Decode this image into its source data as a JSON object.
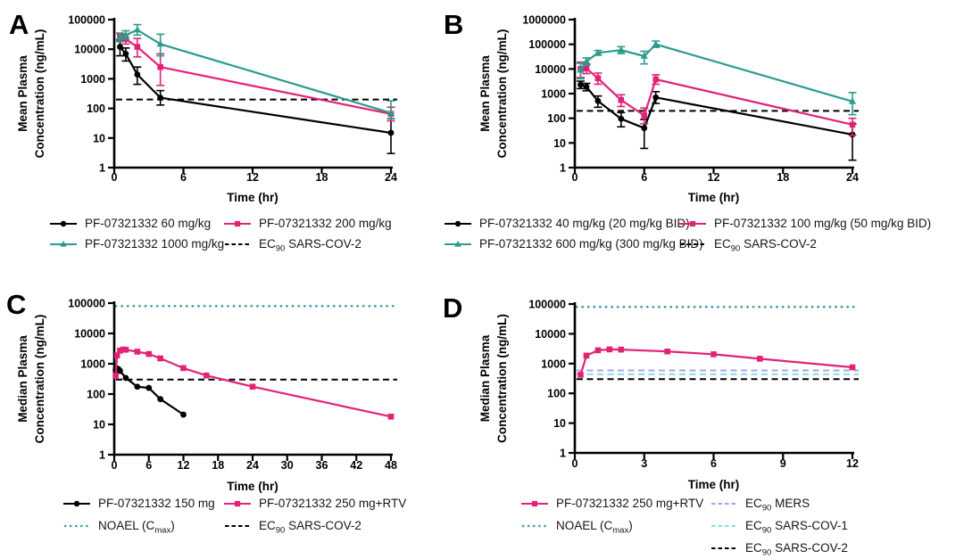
{
  "figure": {
    "background": "#ffffff"
  },
  "chart_data": [
    {
      "letter": "A",
      "type": "line",
      "x_axis": {
        "label": "Time (hr)",
        "range": [
          0,
          24
        ],
        "ticks": [
          0,
          6,
          12,
          18,
          24
        ]
      },
      "y_axis": {
        "label": "Mean Plasma Concentration (ng/mL)",
        "label_lines": [
          "Mean Plasma",
          "Concentration (ng/mL)"
        ],
        "scale": "log",
        "range": [
          1,
          100000
        ],
        "ticks": [
          1,
          10,
          100,
          1000,
          10000,
          100000
        ]
      },
      "ref_lines": [
        {
          "label": "EC~90~ SARS-COV-2",
          "value": 200,
          "style": "dashed",
          "color": "#000000"
        }
      ],
      "series": [
        {
          "name": "PF-07321332 60 mg/kg",
          "color": "#000000",
          "marker": "circle",
          "points": [
            {
              "x": 0.5,
              "y": 12000,
              "lo": 6000,
              "hi": 21000
            },
            {
              "x": 1,
              "y": 7000,
              "lo": 4000,
              "hi": 11000
            },
            {
              "x": 2,
              "y": 1400,
              "lo": 650,
              "hi": 2500
            },
            {
              "x": 4,
              "y": 230,
              "lo": 130,
              "hi": 400
            },
            {
              "x": 24,
              "y": 15,
              "lo": 3,
              "hi": 45
            }
          ]
        },
        {
          "name": "PF-07321332 200 mg/kg",
          "color": "#E22277",
          "marker": "square",
          "points": [
            {
              "x": 0.5,
              "y": 26000,
              "lo": 19000,
              "hi": 35000
            },
            {
              "x": 1,
              "y": 22000,
              "lo": 15000,
              "hi": 32000
            },
            {
              "x": 2,
              "y": 12000,
              "lo": 5500,
              "hi": 23000
            },
            {
              "x": 4,
              "y": 2500,
              "lo": 600,
              "hi": 7000
            },
            {
              "x": 24,
              "y": 65,
              "lo": 38,
              "hi": 110
            }
          ]
        },
        {
          "name": "PF-07321332 1000 mg/kg",
          "color": "#2A9C8E",
          "marker": "triangle",
          "points": [
            {
              "x": 0.5,
              "y": 25000,
              "lo": 18000,
              "hi": 34000
            },
            {
              "x": 1,
              "y": 30000,
              "lo": 22000,
              "hi": 42000
            },
            {
              "x": 2,
              "y": 45000,
              "lo": 30000,
              "hi": 68000
            },
            {
              "x": 4,
              "y": 15000,
              "lo": 6000,
              "hi": 32000
            },
            {
              "x": 24,
              "y": 70,
              "lo": 45,
              "hi": 180
            }
          ]
        }
      ],
      "legend": {
        "columns": [
          [
            {
              "swatch": "line-circle",
              "color": "#000000",
              "label": "PF-07321332 60 mg/kg"
            },
            {
              "swatch": "line-triangle",
              "color": "#2A9C8E",
              "label": "PF-07321332 1000 mg/kg"
            }
          ],
          [
            {
              "swatch": "line-square",
              "color": "#E22277",
              "label": "PF-07321332 200 mg/kg"
            },
            {
              "swatch": "dashed",
              "color": "#000000",
              "label": "EC~90~ SARS-COV-2"
            }
          ]
        ]
      }
    },
    {
      "letter": "B",
      "type": "line",
      "x_axis": {
        "label": "Time (hr)",
        "range": [
          0,
          24
        ],
        "ticks": [
          0,
          6,
          12,
          18,
          24
        ]
      },
      "y_axis": {
        "label": "Mean Plasma Concentration (ng/mL)",
        "label_lines": [
          "Mean Plasma",
          "Concentration (ng/mL)"
        ],
        "scale": "log",
        "range": [
          1,
          1000000
        ],
        "ticks": [
          1,
          10,
          100,
          1000,
          10000,
          100000,
          1000000
        ]
      },
      "ref_lines": [
        {
          "label": "EC~90~ SARS-COV-2",
          "value": 200,
          "style": "dashed",
          "color": "#000000"
        }
      ],
      "series": [
        {
          "name": "PF-07321332 40 mg/kg (20 mg/kg BID)",
          "color": "#000000",
          "marker": "circle",
          "points": [
            {
              "x": 0.5,
              "y": 2300,
              "lo": 1600,
              "hi": 3200
            },
            {
              "x": 1,
              "y": 1900,
              "lo": 1300,
              "hi": 2600
            },
            {
              "x": 2,
              "y": 500,
              "lo": 280,
              "hi": 800
            },
            {
              "x": 4,
              "y": 95,
              "lo": 45,
              "hi": 170
            },
            {
              "x": 6,
              "y": 40,
              "lo": 6,
              "hi": 90
            },
            {
              "x": 7,
              "y": 700,
              "lo": 400,
              "hi": 1200
            },
            {
              "x": 24,
              "y": 22,
              "lo": 2,
              "hi": 60
            }
          ]
        },
        {
          "name": "PF-07321332 100 mg/kg (50 mg/kg BID)",
          "color": "#E22277",
          "marker": "square",
          "points": [
            {
              "x": 0.5,
              "y": 10000,
              "lo": 4500,
              "hi": 19000
            },
            {
              "x": 1,
              "y": 10500,
              "lo": 6500,
              "hi": 16000
            },
            {
              "x": 2,
              "y": 4200,
              "lo": 2400,
              "hi": 6800
            },
            {
              "x": 4,
              "y": 550,
              "lo": 300,
              "hi": 900
            },
            {
              "x": 6,
              "y": 130,
              "lo": 60,
              "hi": 260
            },
            {
              "x": 7,
              "y": 3800,
              "lo": 2400,
              "hi": 5800
            },
            {
              "x": 24,
              "y": 55,
              "lo": 20,
              "hi": 100
            }
          ]
        },
        {
          "name": "PF-07321332 600 mg/kg (300 mg/kg BID)",
          "color": "#2A9C8E",
          "marker": "triangle",
          "points": [
            {
              "x": 0.5,
              "y": 9000,
              "lo": 4000,
              "hi": 17000
            },
            {
              "x": 1,
              "y": 20000,
              "lo": 14000,
              "hi": 28000
            },
            {
              "x": 2,
              "y": 45000,
              "lo": 36000,
              "hi": 56000
            },
            {
              "x": 4,
              "y": 58000,
              "lo": 42000,
              "hi": 80000
            },
            {
              "x": 6,
              "y": 33000,
              "lo": 16000,
              "hi": 52000
            },
            {
              "x": 7,
              "y": 100000,
              "lo": 75000,
              "hi": 135000
            },
            {
              "x": 24,
              "y": 480,
              "lo": 140,
              "hi": 1100
            }
          ]
        }
      ],
      "legend": {
        "columns": [
          [
            {
              "swatch": "line-circle",
              "color": "#000000",
              "label": "PF-07321332 40 mg/kg (20 mg/kg BID)"
            },
            {
              "swatch": "line-triangle",
              "color": "#2A9C8E",
              "label": "PF-07321332 600 mg/kg (300 mg/kg BID)"
            }
          ],
          [
            {
              "swatch": "line-square",
              "color": "#E22277",
              "label": "PF-07321332 100 mg/kg (50 mg/kg BID)"
            },
            {
              "swatch": "dashed",
              "color": "#000000",
              "label": "EC~90~ SARS-COV-2"
            }
          ]
        ]
      }
    },
    {
      "letter": "C",
      "type": "line",
      "x_axis": {
        "label": "Time (hr)",
        "range": [
          0,
          48
        ],
        "ticks": [
          0,
          6,
          12,
          18,
          24,
          30,
          36,
          42,
          48
        ]
      },
      "y_axis": {
        "label": "Median Plasma Concentration (ng/mL)",
        "label_lines": [
          "Median Plasma",
          "Concentration (ng/mL)"
        ],
        "scale": "log",
        "range": [
          1,
          100000
        ],
        "ticks": [
          1,
          10,
          100,
          1000,
          10000,
          100000
        ]
      },
      "ref_lines": [
        {
          "label": "NOAEL (C~max~)",
          "value": 80000,
          "style": "dotted",
          "color": "#3D9EA0"
        },
        {
          "label": "EC~90~ SARS-COV-2",
          "value": 300,
          "style": "dashed",
          "color": "#000000"
        }
      ],
      "series": [
        {
          "name": "PF-07321332 150 mg",
          "color": "#000000",
          "marker": "circle",
          "points": [
            {
              "x": 0.25,
              "y": 620
            },
            {
              "x": 0.5,
              "y": 700
            },
            {
              "x": 0.75,
              "y": 660
            },
            {
              "x": 1,
              "y": 580
            },
            {
              "x": 2,
              "y": 340
            },
            {
              "x": 4,
              "y": 175
            },
            {
              "x": 6,
              "y": 160
            },
            {
              "x": 8,
              "y": 68
            },
            {
              "x": 12,
              "y": 21
            }
          ]
        },
        {
          "name": "PF-07321332 250 mg+RTV",
          "color": "#E22277",
          "marker": "square",
          "points": [
            {
              "x": 0.25,
              "y": 400
            },
            {
              "x": 0.5,
              "y": 1900
            },
            {
              "x": 1,
              "y": 2700
            },
            {
              "x": 1.5,
              "y": 2950
            },
            {
              "x": 2,
              "y": 2900
            },
            {
              "x": 4,
              "y": 2500
            },
            {
              "x": 6,
              "y": 2100
            },
            {
              "x": 8,
              "y": 1500
            },
            {
              "x": 12,
              "y": 720
            },
            {
              "x": 16,
              "y": 410
            },
            {
              "x": 24,
              "y": 175
            },
            {
              "x": 48,
              "y": 18
            }
          ]
        }
      ],
      "legend": {
        "columns": [
          [
            {
              "swatch": "line-circle",
              "color": "#000000",
              "label": "PF-07321332 150 mg"
            },
            {
              "swatch": "dotted",
              "color": "#3D9EA0",
              "label": "NOAEL (C~max~)"
            }
          ],
          [
            {
              "swatch": "line-square",
              "color": "#E22277",
              "label": "PF-07321332 250 mg+RTV"
            },
            {
              "swatch": "dashed",
              "color": "#000000",
              "label": "EC~90~ SARS-COV-2"
            }
          ]
        ]
      }
    },
    {
      "letter": "D",
      "type": "line",
      "x_axis": {
        "label": "Time (hr)",
        "range": [
          0,
          12
        ],
        "ticks": [
          0,
          3,
          6,
          9,
          12
        ]
      },
      "y_axis": {
        "label": "Median Plasma Concentration (ng/mL)",
        "label_lines": [
          "Median Plasma",
          "Concentration (ng/mL)"
        ],
        "scale": "log",
        "range": [
          1,
          100000
        ],
        "ticks": [
          1,
          10,
          100,
          1000,
          10000,
          100000
        ]
      },
      "ref_lines": [
        {
          "label": "NOAEL (C~max~)",
          "value": 80000,
          "style": "dotted",
          "color": "#3D9EA0"
        },
        {
          "label": "EC~90~ MERS",
          "value": 590,
          "style": "dashed",
          "color": "#A3A3E8"
        },
        {
          "label": "EC~90~ SARS-COV-1",
          "value": 440,
          "style": "dashed",
          "color": "#8BDBDE"
        },
        {
          "label": "EC~90~ SARS-COV-2",
          "value": 300,
          "style": "dashed",
          "color": "#000000"
        }
      ],
      "series": [
        {
          "name": "PF-07321332 250 mg+RTV",
          "color": "#E22277",
          "marker": "square",
          "points": [
            {
              "x": 0.25,
              "y": 420
            },
            {
              "x": 0.5,
              "y": 1850
            },
            {
              "x": 1,
              "y": 2800
            },
            {
              "x": 1.5,
              "y": 3000
            },
            {
              "x": 2,
              "y": 2950
            },
            {
              "x": 4,
              "y": 2550
            },
            {
              "x": 6,
              "y": 2050
            },
            {
              "x": 8,
              "y": 1450
            },
            {
              "x": 12,
              "y": 750
            }
          ]
        }
      ],
      "legend": {
        "columns": [
          [
            {
              "swatch": "line-square",
              "color": "#E22277",
              "label": "PF-07321332 250 mg+RTV"
            },
            {
              "swatch": "dotted",
              "color": "#3D9EA0",
              "label": "NOAEL (C~max~)"
            }
          ],
          [
            {
              "swatch": "dashed",
              "color": "#A3A3E8",
              "label": "EC~90~ MERS"
            },
            {
              "swatch": "dashed",
              "color": "#8BDBDE",
              "label": "EC~90~ SARS-COV-1"
            },
            {
              "swatch": "dashed",
              "color": "#000000",
              "label": "EC~90~ SARS-COV-2"
            }
          ]
        ]
      }
    }
  ]
}
